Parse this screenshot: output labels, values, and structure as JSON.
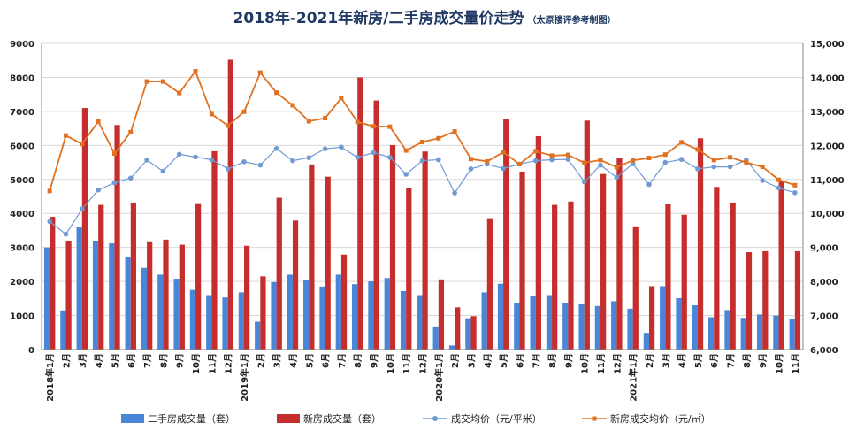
{
  "chart_data": {
    "type": "bar",
    "title": "2018年-2021年新房/二手房成交量价走势",
    "subtitle": "（太原楼评参考制图）",
    "categories": [
      "2018年1月",
      "2月",
      "3月",
      "4月",
      "5月",
      "6月",
      "7月",
      "8月",
      "9月",
      "10月",
      "11月",
      "12月",
      "2019年1月",
      "2月",
      "3月",
      "4月",
      "5月",
      "6月",
      "7月",
      "8月",
      "9月",
      "10月",
      "11月",
      "12月",
      "2020年1月",
      "2月",
      "3月",
      "4月",
      "5月",
      "6月",
      "7月",
      "8月",
      "9月",
      "10月",
      "11月",
      "12月",
      "2021年1月",
      "2月",
      "3月",
      "4月",
      "5月",
      "6月",
      "7月",
      "8月",
      "9月",
      "10月",
      "11月"
    ],
    "y_left": {
      "min": 0,
      "max": 9000,
      "step": 1000,
      "ticks": [
        "0",
        "1000",
        "2000",
        "3000",
        "4000",
        "5000",
        "6000",
        "7000",
        "8000",
        "9000"
      ]
    },
    "y_right": {
      "min": 6000,
      "max": 15000,
      "step": 1000,
      "ticks": [
        "6,000",
        "7,000",
        "8,000",
        "9,000",
        "10,000",
        "11,000",
        "12,000",
        "13,000",
        "14,000",
        "15,000"
      ]
    },
    "grid": true,
    "legend_position": "bottom",
    "series": [
      {
        "name": "二手房成交量（套）",
        "kind": "bar",
        "axis": "left",
        "color": "#4a86d8",
        "values": [
          3000,
          1150,
          3600,
          3200,
          3120,
          2730,
          2400,
          2200,
          2080,
          1750,
          1600,
          1530,
          1680,
          820,
          1980,
          2200,
          2030,
          1850,
          2200,
          1920,
          2000,
          2100,
          1720,
          1600,
          680,
          120,
          920,
          1680,
          1930,
          1380,
          1570,
          1600,
          1380,
          1330,
          1280,
          1420,
          1200,
          490,
          1860,
          1510,
          1300,
          950,
          1160,
          930,
          1030,
          1000,
          910
        ]
      },
      {
        "name": "新房成交量（套）",
        "kind": "bar",
        "axis": "left",
        "color": "#c62d2d",
        "values": [
          3900,
          3200,
          7100,
          4250,
          6600,
          4320,
          3180,
          3230,
          3080,
          4300,
          5830,
          8520,
          3050,
          2150,
          4460,
          3790,
          5440,
          5080,
          2790,
          8000,
          7320,
          6010,
          4760,
          5820,
          2060,
          1240,
          980,
          3860,
          6780,
          5230,
          6270,
          4250,
          4350,
          6730,
          5160,
          5640,
          3620,
          1860,
          4270,
          3960,
          6210,
          4780,
          4320,
          2860,
          2890,
          4950,
          2890
        ]
      },
      {
        "name": "成交均价（元/平米）",
        "kind": "line",
        "axis": "right",
        "color": "#6f9ad3",
        "marker": "circle",
        "values": [
          9760,
          9390,
          10130,
          10690,
          10900,
          11040,
          11570,
          11240,
          11740,
          11660,
          11580,
          11310,
          11520,
          11420,
          11910,
          11550,
          11640,
          11900,
          11950,
          11650,
          11790,
          11650,
          11150,
          11550,
          11580,
          10600,
          11310,
          11450,
          11320,
          11450,
          11550,
          11580,
          11590,
          10930,
          11420,
          11060,
          11460,
          10850,
          11500,
          11590,
          11310,
          11370,
          11370,
          11570,
          10970,
          10750,
          10610
        ]
      },
      {
        "name": "新房成交均价（元/㎡）",
        "kind": "line",
        "axis": "right",
        "color": "#e07121",
        "marker": "square",
        "values": [
          10660,
          12290,
          12040,
          12700,
          11760,
          12390,
          13880,
          13880,
          13540,
          14180,
          12920,
          12580,
          12990,
          14140,
          13550,
          13180,
          12710,
          12800,
          13390,
          12690,
          12560,
          12550,
          11850,
          12100,
          12210,
          12410,
          11600,
          11530,
          11800,
          11450,
          11830,
          11700,
          11720,
          11490,
          11570,
          11360,
          11560,
          11630,
          11730,
          12090,
          11880,
          11570,
          11650,
          11500,
          11370,
          10990,
          10830
        ]
      }
    ]
  }
}
